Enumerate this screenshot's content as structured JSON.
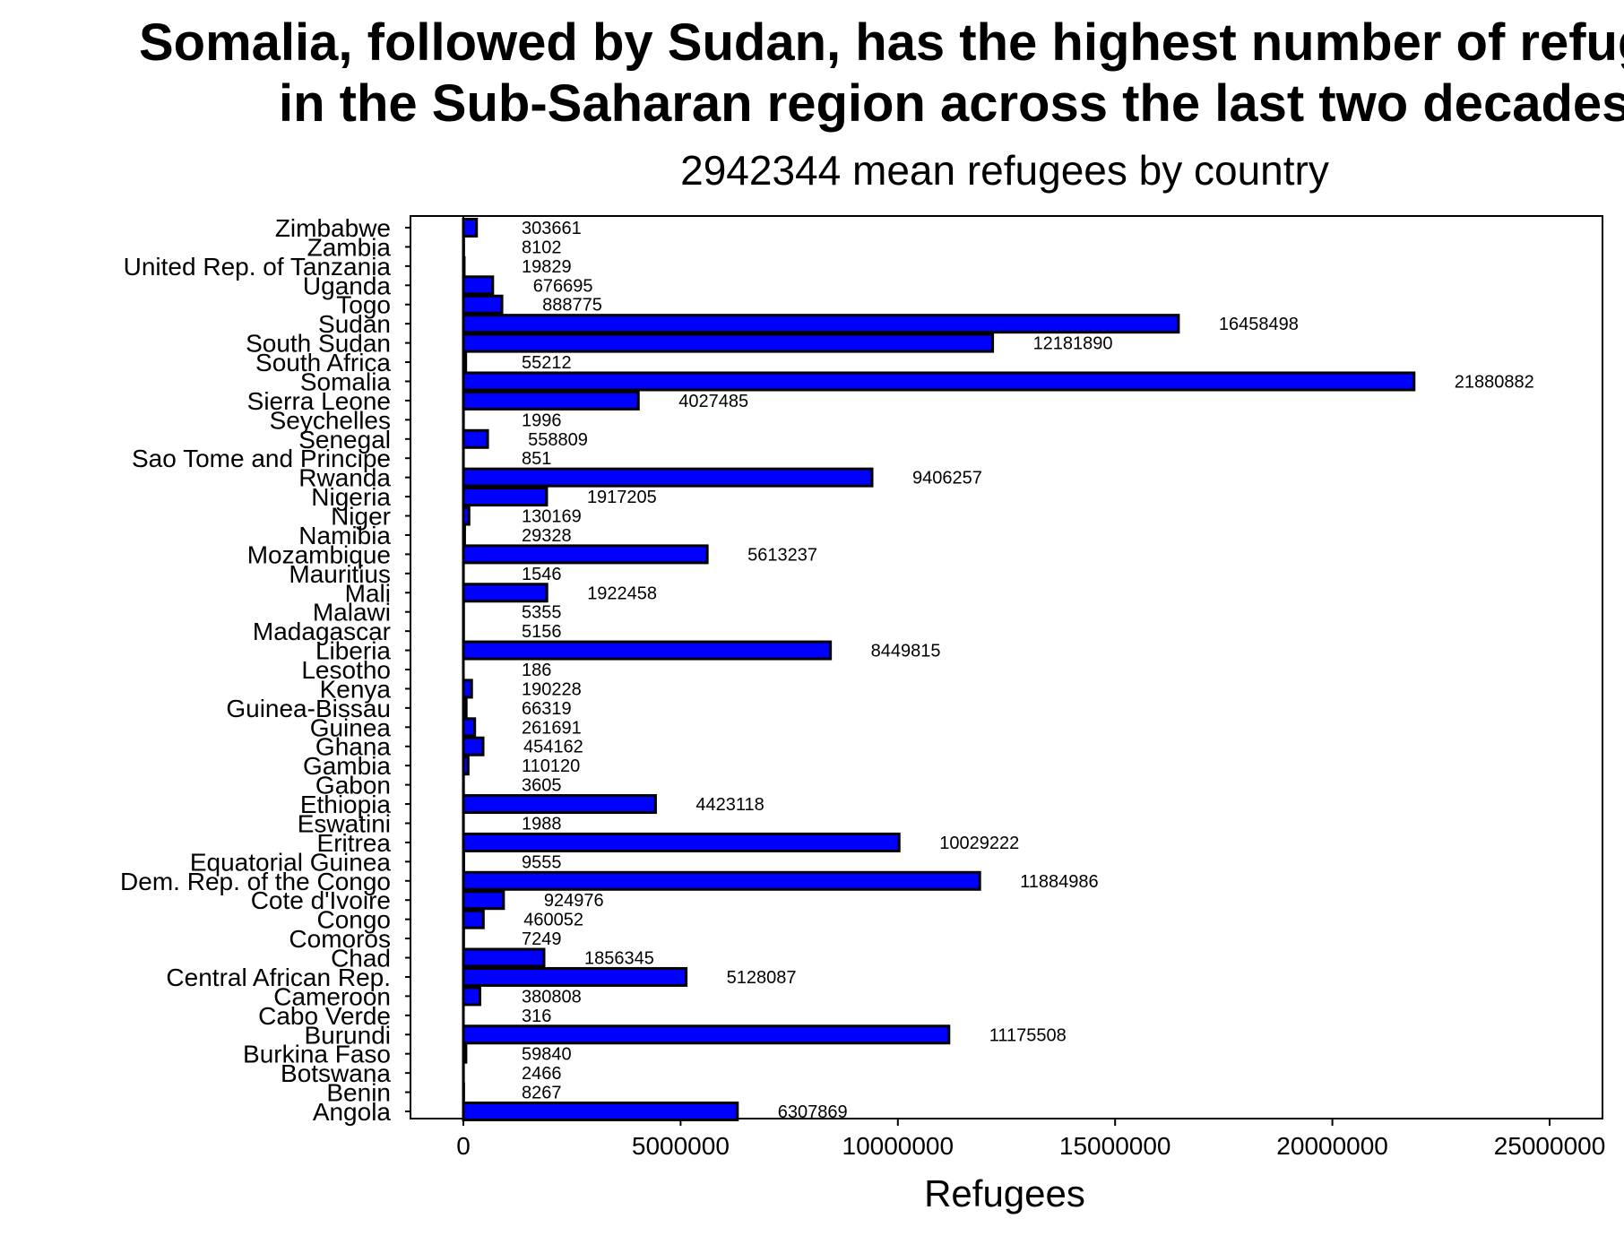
{
  "chart_data": {
    "type": "bar",
    "orientation": "horizontal",
    "title_line1": "Somalia, followed by Sudan, has the highest number of refugees",
    "title_line2": "in the Sub-Saharan region across the last two decades",
    "subtitle": "2942344 mean refugees by country",
    "xlabel": "Refugees",
    "ylabel": "",
    "xlim": [
      0,
      25000000
    ],
    "xticks": [
      "0",
      "5000000",
      "10000000",
      "15000000",
      "20000000",
      "25000000"
    ],
    "grid": false,
    "bar_color": "#0000ff",
    "categories": [
      "Zimbabwe",
      "Zambia",
      "United Rep. of Tanzania",
      "Uganda",
      "Togo",
      "Sudan",
      "South Sudan",
      "South Africa",
      "Somalia",
      "Sierra Leone",
      "Seychelles",
      "Senegal",
      "Sao Tome and Principe",
      "Rwanda",
      "Nigeria",
      "Niger",
      "Namibia",
      "Mozambique",
      "Mauritius",
      "Mali",
      "Malawi",
      "Madagascar",
      "Liberia",
      "Lesotho",
      "Kenya",
      "Guinea-Bissau",
      "Guinea",
      "Ghana",
      "Gambia",
      "Gabon",
      "Ethiopia",
      "Eswatini",
      "Eritrea",
      "Equatorial Guinea",
      "Dem. Rep. of the Congo",
      "Cote d'Ivoire",
      "Congo",
      "Comoros",
      "Chad",
      "Central African Rep.",
      "Cameroon",
      "Cabo Verde",
      "Burundi",
      "Burkina Faso",
      "Botswana",
      "Benin",
      "Angola"
    ],
    "values": [
      303661,
      8102,
      19829,
      676695,
      888775,
      16458498,
      12181890,
      55212,
      21880882,
      4027485,
      1996,
      558809,
      851,
      9406257,
      1917205,
      130169,
      29328,
      5613237,
      1546,
      1922458,
      5355,
      5156,
      8449815,
      186,
      190228,
      66319,
      261691,
      454162,
      110120,
      3605,
      4423118,
      1988,
      10029222,
      9555,
      11884986,
      924976,
      460052,
      7249,
      1856345,
      5128087,
      380808,
      316,
      11175508,
      59840,
      2466,
      8267,
      6307869
    ],
    "value_labels": [
      "303661",
      "8102",
      "19829",
      "676695",
      "888775",
      "16458498",
      "12181890",
      "55212",
      "21880882",
      "4027485",
      "1996",
      "558809",
      "851",
      "9406257",
      "1917205",
      "130169",
      "29328",
      "5613237",
      "1546",
      "1922458",
      "5355",
      "5156",
      "8449815",
      "186",
      "190228",
      "66319",
      "261691",
      "454162",
      "110120",
      "3605",
      "4423118",
      "1988",
      "10029222",
      "9555",
      "11884986",
      "924976",
      "460052",
      "7249",
      "1856345",
      "5128087",
      "380808",
      "316",
      "11175508",
      "59840",
      "2466",
      "8267",
      "6307869"
    ]
  }
}
